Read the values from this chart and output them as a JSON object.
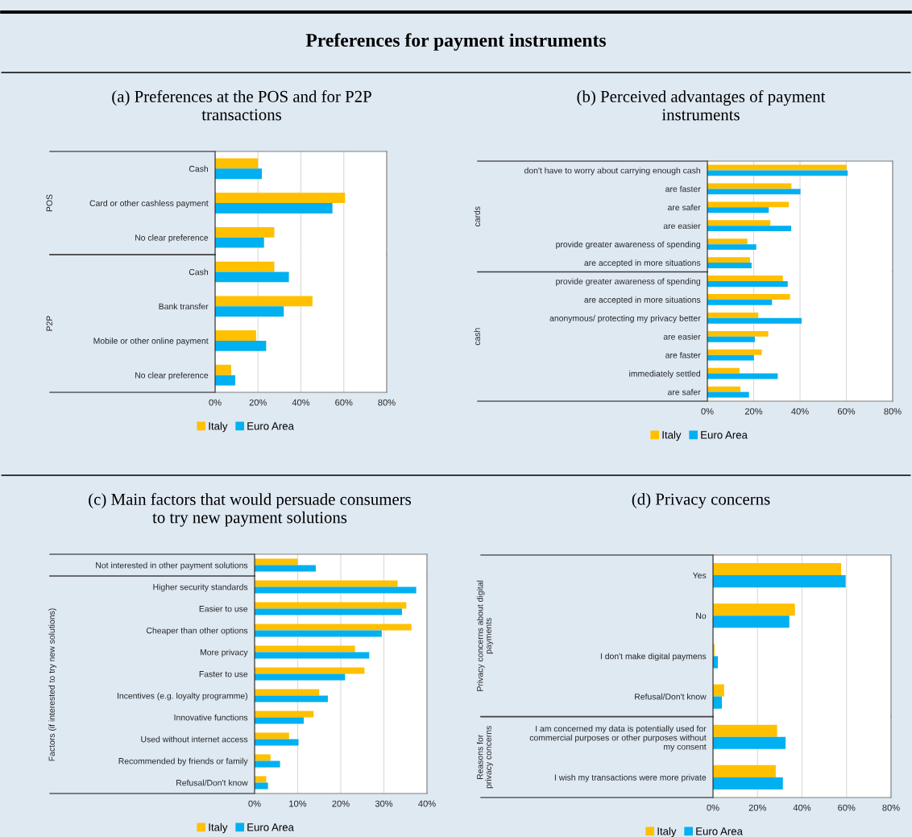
{
  "chart_data": [
    {
      "type": "bar",
      "orientation": "horizontal",
      "title": "Preferences for payment instruments",
      "subtitle": "(a) Preferences at the POS and for P2P\ntransactions",
      "ylabel": "POS",
      "categories": [
        "Cash",
        "Card or other cashless payment",
        "No clear preference"
      ],
      "series": [
        {
          "color": "#ffc000",
          "values": [
            20,
            60.6,
            27.6
          ]
        },
        {
          "color": "#00b0f0",
          "values": [
            21.8,
            54.7,
            22.8
          ]
        }
      ],
      "xlim": [
        0,
        80
      ],
      "xticks": [
        0,
        20,
        40,
        60,
        80
      ],
      "grid": "x",
      "tick_labels": "y"
    },
    {
      "type": "bar",
      "orientation": "horizontal",
      "ylabel": "P2P",
      "categories": [
        "Cash",
        "Bank transfer",
        "Mobile or other online payment",
        "No clear preference"
      ],
      "series": [
        {
          "name": "Italy",
          "color": "#ffc000",
          "values": [
            27.6,
            45.4,
            19.1,
            7.5
          ]
        },
        {
          "name": "Euro Area",
          "color": "#00b0f0",
          "values": [
            34.4,
            32.0,
            23.8,
            9.4
          ]
        }
      ],
      "xlim": [
        0,
        80
      ],
      "xticks": [
        {
          "value": 0,
          "label": "0%"
        },
        {
          "value": 20,
          "label": "20%"
        },
        {
          "value": 40,
          "label": "40%"
        },
        {
          "value": 60,
          "label": "60%"
        },
        {
          "value": 80,
          "label": "80%"
        }
      ],
      "grid": "x",
      "legend": "bottom"
    },
    {
      "type": "bar",
      "orientation": "horizontal",
      "subtitle": "(b) Perceived advantages of payment\ninstruments",
      "ylabel": "cards",
      "categories": [
        "don't have to worry about carrying enough cash",
        "are faster",
        "are safer",
        "are easier",
        "provide greater awareness of spending",
        "are accepted in more situations"
      ],
      "series": [
        {
          "color": "#ffc000",
          "values": [
            60.1,
            36.3,
            35.2,
            27.2,
            17.3,
            18.4
          ]
        },
        {
          "color": "#00b0f0",
          "values": [
            60.6,
            40.2,
            26.5,
            36.2,
            21.1,
            19.1
          ]
        }
      ],
      "xlim": [
        0,
        80
      ],
      "xticks": [
        0,
        20,
        40,
        60,
        80
      ],
      "grid": "x",
      "tick_labels": "y"
    },
    {
      "type": "bar",
      "orientation": "horizontal",
      "ylabel": "cash",
      "categories": [
        "provide greater awareness of spending",
        "are accepted in more situations",
        "anonymous/ protecting my privacy better",
        "are easier",
        "are faster",
        "immediately settled",
        "are safer"
      ],
      "series": [
        {
          "name": "Italy",
          "color": "#ffc000",
          "values": [
            32.6,
            35.7,
            22.0,
            26.3,
            23.5,
            13.9,
            14.3
          ]
        },
        {
          "name": "Euro Area",
          "color": "#00b0f0",
          "values": [
            34.7,
            27.9,
            40.7,
            20.5,
            20.1,
            30.4,
            18.0
          ]
        }
      ],
      "xlim": [
        0,
        80
      ],
      "xticks": [
        {
          "value": 0,
          "label": "0%"
        },
        {
          "value": 20,
          "label": "20%"
        },
        {
          "value": 40,
          "label": "40%"
        },
        {
          "value": 60,
          "label": "60%"
        },
        {
          "value": 80,
          "label": "80%"
        }
      ],
      "grid": "x",
      "legend": "bottom"
    },
    {
      "type": "bar",
      "orientation": "horizontal",
      "subtitle": "(c) Main factors that would persuade consumers\nto try new payment solutions",
      "categories": [
        "Not interested in other payment solutions"
      ],
      "series": [
        {
          "color": "#ffc000",
          "values": [
            10.0
          ]
        },
        {
          "color": "#00b0f0",
          "values": [
            14.2
          ]
        }
      ],
      "xlim": [
        0,
        40
      ],
      "xticks": [
        0,
        10,
        20,
        30,
        40
      ],
      "grid": "x",
      "tick_labels": "y"
    },
    {
      "type": "bar",
      "orientation": "horizontal",
      "ylabel": "Factors (if interested to try new solutions)",
      "categories": [
        "Higher security standards",
        "Easier to use",
        "Cheaper than other options",
        "More privacy",
        "Faster to use",
        "Incentives (e.g. loyalty programme)",
        "Innovative functions",
        "Used without internet access",
        "Recommended by friends or family",
        "Refusal/Don't know"
      ],
      "series": [
        {
          "name": "Italy",
          "color": "#ffc000",
          "values": [
            33.2,
            35.2,
            36.4,
            23.3,
            25.5,
            15.0,
            13.7,
            8.0,
            3.7,
            2.7
          ]
        },
        {
          "name": "Euro Area",
          "color": "#00b0f0",
          "values": [
            37.5,
            34.2,
            29.5,
            26.6,
            21.0,
            17.0,
            11.4,
            10.2,
            5.9,
            3.1
          ]
        }
      ],
      "xlim": [
        0,
        40
      ],
      "xticks": [
        {
          "value": 0,
          "label": "0%"
        },
        {
          "value": 10,
          "label": "10%"
        },
        {
          "value": 20,
          "label": "20%"
        },
        {
          "value": 30,
          "label": "30%"
        },
        {
          "value": 40,
          "label": "40%"
        }
      ],
      "grid": "x",
      "legend": "bottom"
    },
    {
      "type": "bar",
      "orientation": "horizontal",
      "subtitle": "(d) Privacy concerns",
      "ylabel": "Privacy concerns about digital\npayments",
      "categories": [
        "Yes",
        "No",
        "I don't make digital paymens",
        "Refusal/Don't know"
      ],
      "series": [
        {
          "color": "#ffc000",
          "values": [
            57.6,
            36.8,
            0.7,
            5.0
          ]
        },
        {
          "color": "#00b0f0",
          "values": [
            59.6,
            34.3,
            2.2,
            4.0
          ]
        }
      ],
      "xlim": [
        0,
        80
      ],
      "xticks": [
        0,
        20,
        40,
        60,
        80
      ],
      "grid": "x",
      "tick_labels": "y"
    },
    {
      "type": "bar",
      "orientation": "horizontal",
      "ylabel": "Reasons for\nprivacy concerns",
      "categories": [
        "I am concerned my data is potentially used for\ncommercial purposes or other purposes without\nmy consent",
        "I wish my transactions were more private"
      ],
      "series": [
        {
          "name": "Italy",
          "color": "#ffc000",
          "values": [
            28.8,
            28.2
          ]
        },
        {
          "name": "Euro Area",
          "color": "#00b0f0",
          "values": [
            32.6,
            31.4
          ]
        }
      ],
      "xlim": [
        0,
        80
      ],
      "xticks": [
        {
          "value": 0,
          "label": "0%"
        },
        {
          "value": 20,
          "label": "20%"
        },
        {
          "value": 40,
          "label": "40%"
        },
        {
          "value": 60,
          "label": "60%"
        },
        {
          "value": 80,
          "label": "80%"
        }
      ],
      "grid": "x",
      "legend": "bottom"
    }
  ]
}
